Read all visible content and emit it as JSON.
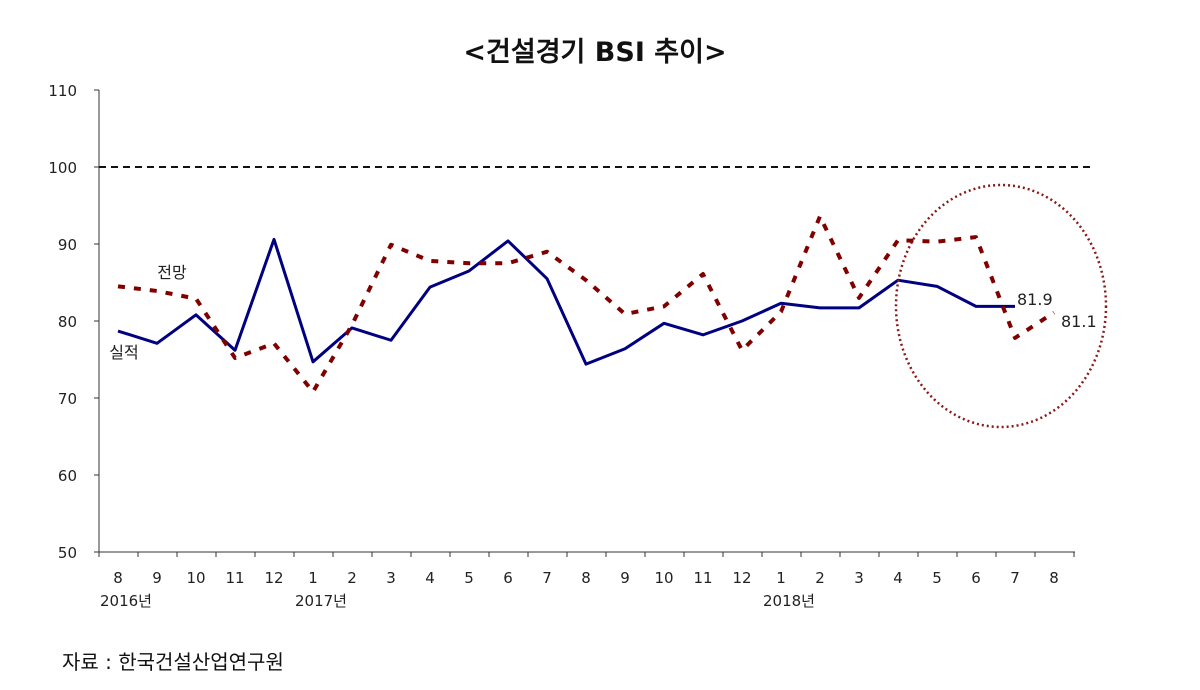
{
  "chart_data": {
    "type": "line",
    "title": "<건설경기 BSI 추이>",
    "source": "자료 : 한국건설산업연구원",
    "categories": [
      "8",
      "9",
      "10",
      "11",
      "12",
      "1",
      "2",
      "3",
      "4",
      "5",
      "6",
      "7",
      "8",
      "9",
      "10",
      "11",
      "12",
      "1",
      "2",
      "3",
      "4",
      "5",
      "6",
      "7",
      "8"
    ],
    "year_labels": [
      {
        "index": 0,
        "label": "2016년"
      },
      {
        "index": 5,
        "label": "2017년"
      },
      {
        "index": 17,
        "label": "2018년"
      }
    ],
    "ylim": [
      50,
      110
    ],
    "yticks": [
      50,
      60,
      70,
      80,
      90,
      100,
      110
    ],
    "reference_line": 100,
    "series": [
      {
        "name": "실적",
        "color": "#000080",
        "style": "solid",
        "values": [
          78.7,
          77.1,
          80.8,
          76.2,
          90.6,
          74.7,
          79.1,
          77.5,
          84.4,
          86.5,
          90.4,
          85.5,
          74.4,
          76.4,
          79.7,
          78.2,
          80.0,
          82.3,
          81.7,
          81.7,
          85.3,
          84.5,
          81.9,
          81.9,
          null
        ],
        "end_label": "81.9"
      },
      {
        "name": "전망",
        "color": "#800000",
        "style": "dashed",
        "values": [
          84.5,
          83.9,
          82.9,
          75.2,
          77.1,
          70.8,
          79.5,
          89.9,
          87.8,
          87.5,
          87.5,
          89.0,
          85.3,
          80.9,
          81.9,
          86.1,
          76.2,
          81.2,
          93.6,
          83.0,
          90.5,
          90.3,
          90.9,
          77.8,
          81.1
        ],
        "end_label": "81.1"
      }
    ],
    "highlight": "circle around last four months",
    "grid": false
  }
}
